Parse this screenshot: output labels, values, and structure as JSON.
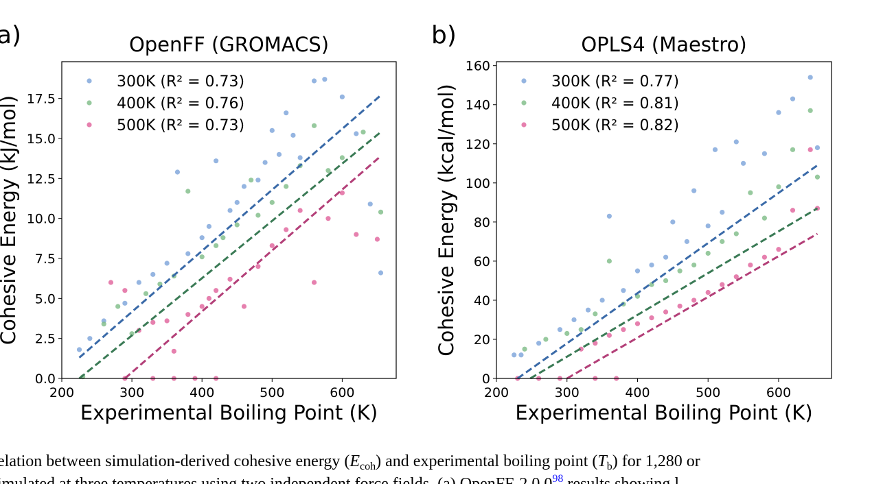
{
  "chart_data": [
    {
      "type": "scatter",
      "panel": "a)",
      "title": "OpenFF (GROMACS)",
      "x_label": "Experimental Boiling Point (K)",
      "y_label": "Cohesive Energy (kJ/mol)",
      "xlim": [
        200,
        677
      ],
      "ylim": [
        0,
        19.8
      ],
      "xticks": [
        200,
        300,
        400,
        500,
        600
      ],
      "yticks": [
        {
          "value": 0,
          "label": "0.0"
        },
        2.5,
        {
          "value": 5,
          "label": "5.0"
        },
        7.5,
        {
          "value": 10,
          "label": "10.0"
        },
        12.5,
        {
          "value": 15,
          "label": "15.0"
        },
        17.5
      ],
      "legend": "upper left",
      "series": [
        {
          "name": "300K (R² = 0.73)",
          "color": "#7ba3d9",
          "x": [
            225,
            240,
            260,
            290,
            310,
            330,
            350,
            365,
            380,
            400,
            410,
            420,
            440,
            450,
            460,
            480,
            490,
            500,
            510,
            520,
            530,
            540,
            560,
            575,
            600,
            620,
            640,
            655
          ],
          "values": [
            1.8,
            2.5,
            3.6,
            4.7,
            6.0,
            6.5,
            7.2,
            12.9,
            7.8,
            8.8,
            9.5,
            13.6,
            10.5,
            11.0,
            12.0,
            12.4,
            13.5,
            15.5,
            14.0,
            16.6,
            15.2,
            13.8,
            18.6,
            18.7,
            17.6,
            15.3,
            10.9,
            6.6
          ]
        },
        {
          "name": "400K (R² = 0.76)",
          "color": "#7dbb86",
          "x": [
            230,
            260,
            280,
            300,
            320,
            340,
            360,
            380,
            400,
            420,
            430,
            450,
            470,
            480,
            500,
            520,
            540,
            560,
            580,
            600,
            630,
            655
          ],
          "values": [
            0.1,
            3.4,
            4.5,
            2.8,
            5.3,
            5.9,
            6.4,
            11.7,
            7.6,
            8.3,
            8.8,
            9.6,
            12.4,
            10.2,
            11.0,
            12.0,
            13.3,
            15.8,
            13.0,
            13.8,
            15.4,
            10.4
          ]
        },
        {
          "name": "500K (R² = 0.73)",
          "color": "#e0609a",
          "x": [
            270,
            290,
            310,
            330,
            350,
            360,
            380,
            400,
            410,
            420,
            440,
            460,
            480,
            500,
            520,
            540,
            560,
            580,
            600,
            620,
            650,
            290,
            330,
            360,
            390,
            420
          ],
          "values": [
            6.0,
            5.5,
            3.0,
            3.5,
            3.6,
            1.7,
            4.0,
            4.5,
            5.0,
            5.5,
            6.2,
            4.5,
            7.0,
            8.3,
            9.3,
            10.5,
            6.0,
            10.0,
            11.6,
            9.0,
            8.7,
            0,
            0,
            0,
            0,
            0
          ]
        }
      ],
      "fit_lines": [
        {
          "color": "#3a6aa8",
          "x": [
            225,
            655
          ],
          "values": [
            1.3,
            17.7
          ]
        },
        {
          "color": "#3a7a55",
          "x": [
            225,
            655
          ],
          "values": [
            0,
            15.4
          ]
        },
        {
          "color": "#b33f78",
          "x": [
            290,
            655
          ],
          "values": [
            0,
            13.9
          ]
        }
      ]
    },
    {
      "type": "scatter",
      "panel": "b)",
      "title": "OPLS4 (Maestro)",
      "x_label": "Experimental Boiling Point (K)",
      "y_label": "Cohesive Energy (kcal/mol)",
      "xlim": [
        200,
        675
      ],
      "ylim": [
        0,
        162
      ],
      "xticks": [
        200,
        300,
        400,
        500,
        600
      ],
      "yticks": [
        0,
        20,
        40,
        60,
        80,
        100,
        120,
        140,
        160
      ],
      "legend": "upper left",
      "series": [
        {
          "name": "300K (R² = 0.77)",
          "color": "#7ba3d9",
          "x": [
            225,
            235,
            260,
            290,
            310,
            330,
            350,
            360,
            380,
            400,
            420,
            440,
            450,
            470,
            480,
            500,
            510,
            520,
            540,
            550,
            580,
            600,
            620,
            645,
            655
          ],
          "values": [
            12,
            12,
            18,
            25,
            30,
            35,
            40,
            83,
            45,
            55,
            58,
            62,
            80,
            70,
            96,
            78,
            117,
            85,
            121,
            110,
            115,
            136,
            143,
            154,
            118
          ]
        },
        {
          "name": "400K (R² = 0.81)",
          "color": "#7dbb86",
          "x": [
            240,
            270,
            300,
            320,
            340,
            360,
            380,
            400,
            420,
            440,
            460,
            480,
            500,
            520,
            540,
            560,
            580,
            600,
            620,
            645,
            655
          ],
          "values": [
            15,
            20,
            23,
            25,
            33,
            60,
            38,
            42,
            48,
            50,
            55,
            58,
            64,
            70,
            74,
            95,
            82,
            98,
            117,
            137,
            103
          ]
        },
        {
          "name": "500K (R² = 0.82)",
          "color": "#e0609a",
          "x": [
            230,
            260,
            290,
            320,
            340,
            360,
            380,
            400,
            420,
            440,
            460,
            480,
            500,
            520,
            540,
            560,
            580,
            600,
            620,
            645,
            655,
            340,
            370
          ],
          "values": [
            0,
            0,
            0,
            15,
            18,
            22,
            25,
            28,
            31,
            34,
            37,
            40,
            44,
            48,
            52,
            58,
            62,
            66,
            86,
            117,
            87,
            0,
            0
          ]
        }
      ],
      "fit_lines": [
        {
          "color": "#3a6aa8",
          "x": [
            230,
            655
          ],
          "values": [
            0,
            109
          ]
        },
        {
          "color": "#3a7a55",
          "x": [
            248,
            655
          ],
          "values": [
            0,
            87
          ]
        },
        {
          "color": "#b33f78",
          "x": [
            300,
            655
          ],
          "values": [
            0,
            74
          ]
        }
      ]
    }
  ],
  "caption": {
    "line1": [
      "elation between simulation-derived cohesive energy (",
      "E",
      "coh",
      ") and experimental boiling point (",
      "T",
      "b",
      ") for 1,280 or"
    ],
    "line2": [
      "imulated at three temperatures using two independent force fields. (a) OpenFF-2.0.0",
      "98",
      " results showing l"
    ]
  }
}
